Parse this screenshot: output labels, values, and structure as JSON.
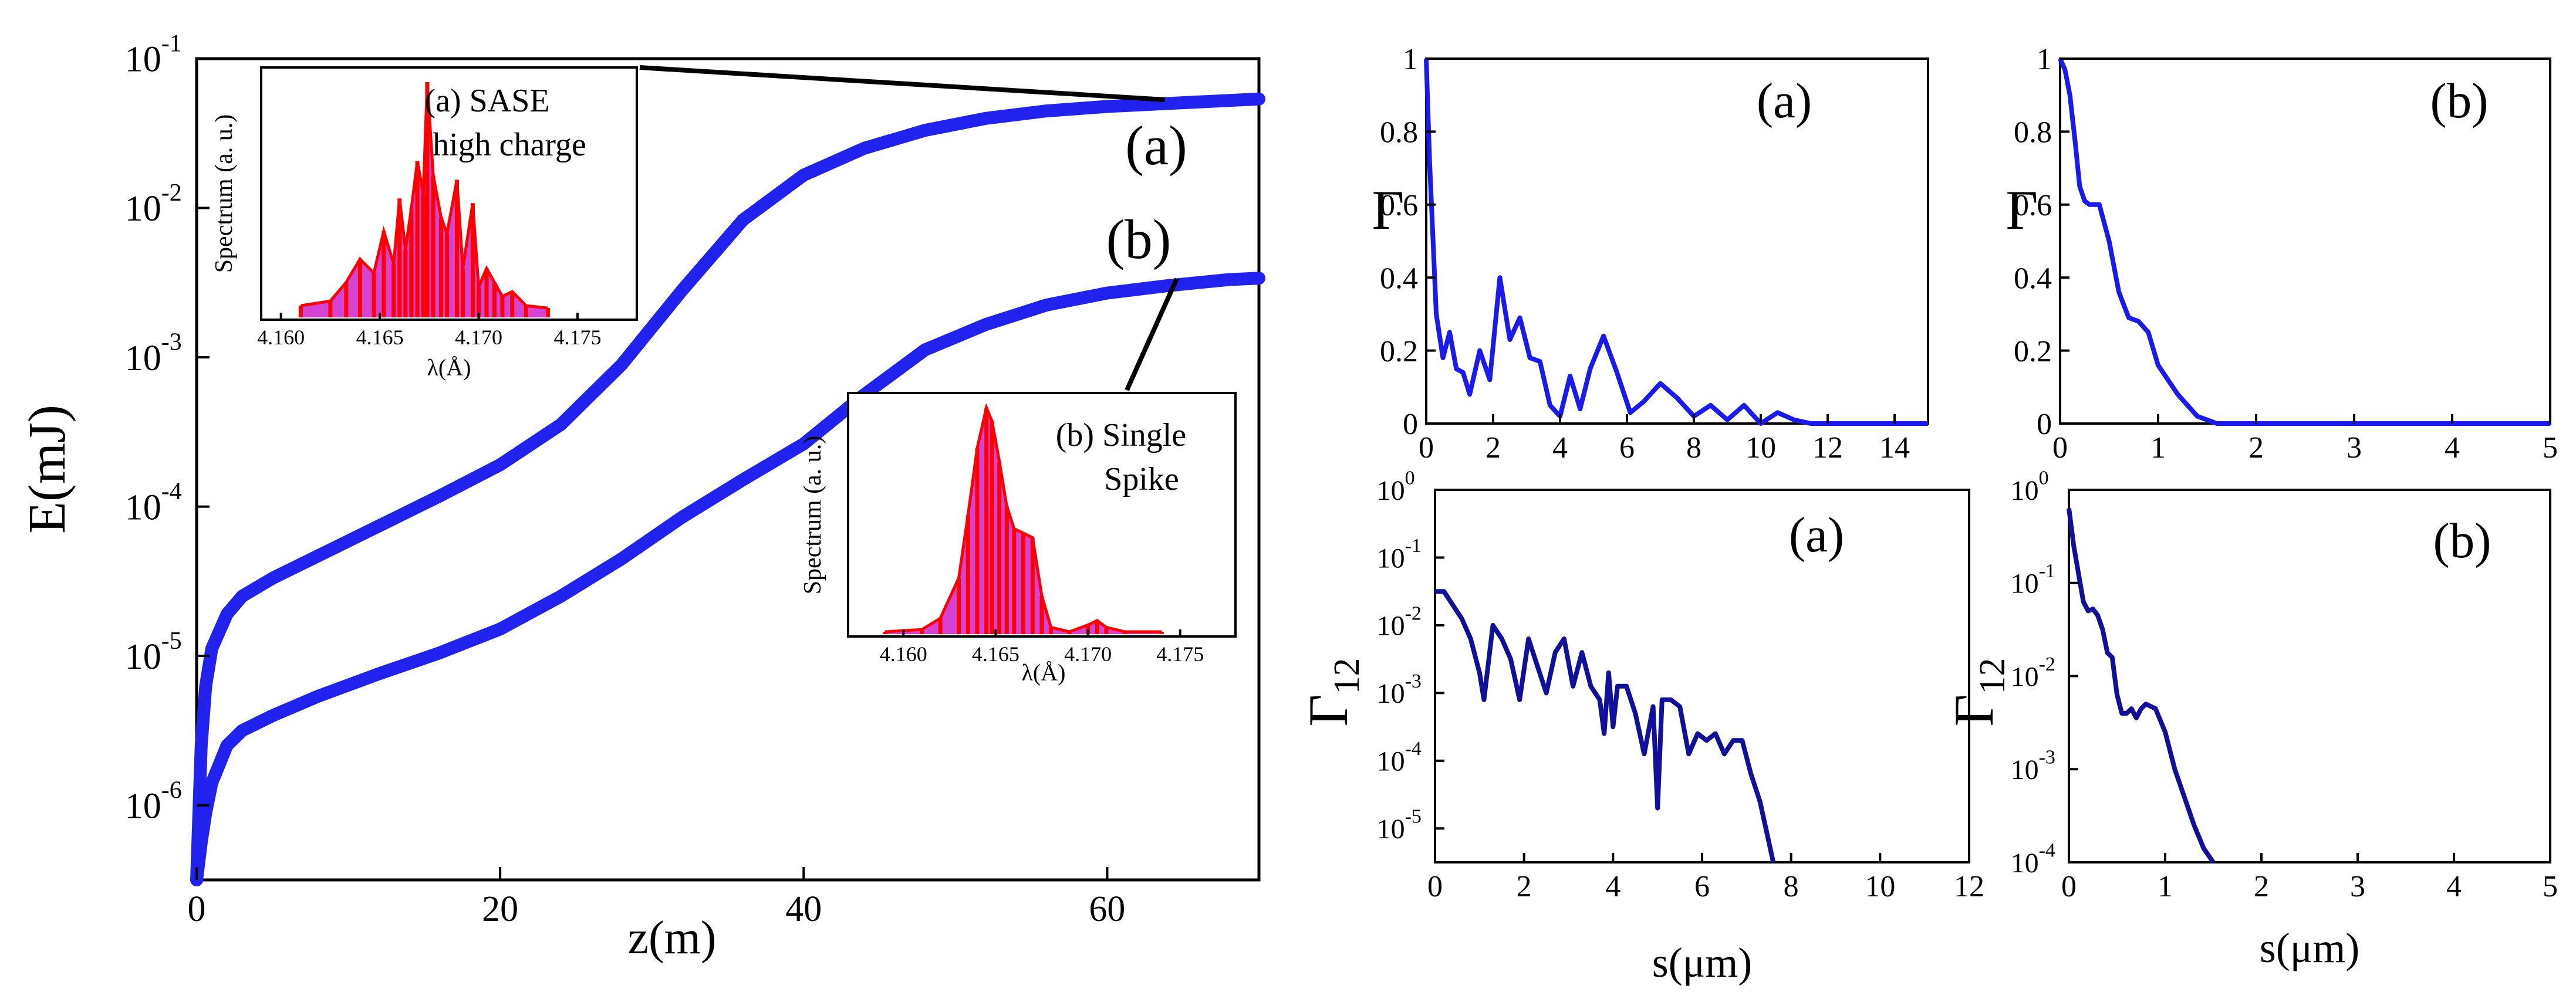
{
  "chart_data": [
    {
      "id": "energy",
      "type": "line",
      "ylog": true,
      "xlabel": "z(m)",
      "ylabel": "E(mJ)",
      "xlim": [
        0,
        70
      ],
      "ylim_exp": [
        -6.5,
        -1
      ],
      "xticks": [
        0,
        20,
        40,
        60
      ],
      "xtick_labels": [
        "0",
        "20",
        "40",
        "60"
      ],
      "yticks_exp": [
        -6,
        -5,
        -4,
        -3,
        -2,
        -1
      ],
      "ytick_labels": [
        "10",
        "10",
        "10",
        "10",
        "10",
        "10"
      ],
      "ytick_exps": [
        "-6",
        "-5",
        "-4",
        "-3",
        "-2",
        "-1"
      ],
      "series": [
        {
          "name": "(a)",
          "color": "#2222ee",
          "x": [
            0,
            0.3,
            0.6,
            1,
            2,
            3,
            5,
            8,
            12,
            16,
            20,
            24,
            28,
            32,
            36,
            40,
            44,
            48,
            52,
            56,
            60,
            64,
            68,
            70
          ],
          "logy": [
            -6.5,
            -5.6,
            -5.2,
            -4.95,
            -4.72,
            -4.6,
            -4.48,
            -4.33,
            -4.13,
            -3.93,
            -3.72,
            -3.45,
            -3.05,
            -2.55,
            -2.08,
            -1.78,
            -1.6,
            -1.48,
            -1.4,
            -1.35,
            -1.32,
            -1.3,
            -1.28,
            -1.27
          ]
        },
        {
          "name": "(b)",
          "color": "#2222ee",
          "x": [
            0,
            0.3,
            0.6,
            1,
            2,
            3,
            5,
            8,
            12,
            16,
            20,
            24,
            28,
            32,
            36,
            40,
            44,
            48,
            52,
            56,
            60,
            64,
            68,
            70
          ],
          "logy": [
            -6.5,
            -6.25,
            -6.05,
            -5.85,
            -5.6,
            -5.5,
            -5.4,
            -5.27,
            -5.12,
            -4.98,
            -4.82,
            -4.6,
            -4.35,
            -4.07,
            -3.82,
            -3.58,
            -3.25,
            -2.95,
            -2.78,
            -2.65,
            -2.57,
            -2.52,
            -2.48,
            -2.47
          ]
        }
      ],
      "labels": {
        "a": "(a)",
        "b": "(b)"
      },
      "insets": [
        {
          "id": "sase",
          "type": "bar",
          "color": "#ff0000",
          "fill": "#cc22cc",
          "title_line1": "(a) SASE",
          "title_line2": "high charge",
          "ylabel": "Spectrum (a. u.)",
          "xlabel": "λ(Å)",
          "xlim": [
            4.159,
            4.178
          ],
          "xticks": [
            4.16,
            4.165,
            4.17,
            4.175
          ],
          "xtick_labels": [
            "4.160",
            "4.165",
            "4.170",
            "4.175"
          ],
          "lambda": [
            4.161,
            4.1625,
            4.1633,
            4.164,
            4.1647,
            4.1652,
            4.1657,
            4.166,
            4.1663,
            4.1666,
            4.1669,
            4.1672,
            4.1674,
            4.1677,
            4.1681,
            4.1684,
            4.1689,
            4.1692,
            4.1697,
            4.17,
            4.1704,
            4.1708,
            4.1712,
            4.1717,
            4.1724,
            4.1735
          ],
          "values": [
            0.04,
            0.06,
            0.14,
            0.24,
            0.18,
            0.36,
            0.22,
            0.5,
            0.28,
            0.46,
            0.66,
            0.52,
            1.0,
            0.6,
            0.42,
            0.35,
            0.58,
            0.2,
            0.48,
            0.12,
            0.2,
            0.14,
            0.08,
            0.1,
            0.04,
            0.03
          ]
        },
        {
          "id": "single",
          "type": "bar",
          "color": "#ff0000",
          "fill": "#cc22cc",
          "title_line1": "(b) Single",
          "title_line2": "Spike",
          "ylabel": "Spectrum (a. u.)",
          "xlabel": "λ(Å)",
          "xlim": [
            4.157,
            4.178
          ],
          "xticks": [
            4.16,
            4.165,
            4.17,
            4.175
          ],
          "xtick_labels": [
            "4.160",
            "4.165",
            "4.170",
            "4.175"
          ],
          "lambda": [
            4.159,
            4.161,
            4.162,
            4.163,
            4.1635,
            4.164,
            4.1645,
            4.1648,
            4.1652,
            4.1656,
            4.166,
            4.1665,
            4.167,
            4.1675,
            4.168,
            4.169,
            4.17,
            4.1705,
            4.171,
            4.172,
            4.174
          ],
          "values": [
            0.0,
            0.01,
            0.06,
            0.24,
            0.52,
            0.82,
            1.0,
            0.94,
            0.76,
            0.56,
            0.46,
            0.44,
            0.42,
            0.16,
            0.02,
            0.0,
            0.03,
            0.05,
            0.02,
            0.0,
            0.0
          ]
        }
      ]
    },
    {
      "id": "gamma-a",
      "type": "line",
      "label": "(a)",
      "ylabel": "Γ",
      "xlim": [
        0,
        15
      ],
      "ylim": [
        0,
        1
      ],
      "xticks": [
        0,
        2,
        4,
        6,
        8,
        10,
        12,
        14
      ],
      "xtick_labels": [
        "0",
        "2",
        "4",
        "6",
        "8",
        "10",
        "12",
        "14"
      ],
      "yticks": [
        0,
        0.2,
        0.4,
        0.6,
        0.8,
        1
      ],
      "ytick_labels": [
        "0",
        "0.2",
        "0.4",
        "0.6",
        "0.8",
        "1"
      ],
      "x": [
        0,
        0.1,
        0.3,
        0.5,
        0.7,
        0.9,
        1.1,
        1.3,
        1.6,
        1.9,
        2.2,
        2.5,
        2.8,
        3.1,
        3.4,
        3.7,
        4.0,
        4.3,
        4.6,
        4.9,
        5.3,
        5.7,
        6.1,
        6.5,
        7.0,
        7.5,
        8.0,
        8.5,
        9.0,
        9.5,
        10.0,
        10.5,
        11.0,
        11.5,
        12,
        13,
        14,
        15
      ],
      "y": [
        1.0,
        0.72,
        0.3,
        0.18,
        0.25,
        0.15,
        0.14,
        0.08,
        0.2,
        0.12,
        0.4,
        0.23,
        0.29,
        0.18,
        0.17,
        0.05,
        0.02,
        0.13,
        0.04,
        0.15,
        0.24,
        0.14,
        0.03,
        0.06,
        0.11,
        0.07,
        0.02,
        0.05,
        0.01,
        0.05,
        0.0,
        0.03,
        0.01,
        0.0,
        0.0,
        0.0,
        0.0,
        0.0
      ],
      "color": "#1a1aee"
    },
    {
      "id": "gamma-b",
      "type": "line",
      "label": "(b)",
      "ylabel": "Γ",
      "xlim": [
        0,
        5
      ],
      "ylim": [
        0,
        1
      ],
      "xticks": [
        0,
        1,
        2,
        3,
        4,
        5
      ],
      "xtick_labels": [
        "0",
        "1",
        "2",
        "3",
        "4",
        "5"
      ],
      "yticks": [
        0,
        0.2,
        0.4,
        0.6,
        0.8,
        1
      ],
      "ytick_labels": [
        "0",
        "0.2",
        "0.4",
        "0.6",
        "0.8",
        "1"
      ],
      "x": [
        0,
        0.05,
        0.1,
        0.15,
        0.2,
        0.25,
        0.3,
        0.4,
        0.5,
        0.6,
        0.7,
        0.8,
        0.9,
        1.0,
        1.1,
        1.2,
        1.3,
        1.4,
        1.5,
        1.6,
        1.8,
        2.0,
        2.5,
        3,
        4,
        5
      ],
      "y": [
        1.0,
        0.97,
        0.9,
        0.78,
        0.65,
        0.61,
        0.6,
        0.6,
        0.5,
        0.36,
        0.29,
        0.28,
        0.25,
        0.16,
        0.12,
        0.08,
        0.05,
        0.02,
        0.01,
        0.0,
        0.0,
        0.0,
        0.0,
        0.0,
        0.0,
        0.0
      ],
      "color": "#1a1aee"
    },
    {
      "id": "gamma12-a",
      "type": "line",
      "ylog": true,
      "label": "(a)",
      "ylabel": "Γ",
      "ylabel_sub": "12",
      "xlabel": "s(μm)",
      "xlim": [
        0,
        12
      ],
      "ylim_exp": [
        -5.5,
        0
      ],
      "xticks": [
        0,
        2,
        4,
        6,
        8,
        10,
        12
      ],
      "xtick_labels": [
        "0",
        "2",
        "4",
        "6",
        "8",
        "10",
        "12"
      ],
      "yticks_exp": [
        -5,
        -4,
        -3,
        -2,
        -1,
        0
      ],
      "ytick_labels": [
        "10",
        "10",
        "10",
        "10",
        "10",
        "10"
      ],
      "ytick_exps": [
        "-5",
        "-4",
        "-3",
        "-2",
        "-1",
        "0"
      ],
      "x": [
        0,
        0.2,
        0.4,
        0.6,
        0.8,
        1.0,
        1.1,
        1.3,
        1.5,
        1.7,
        1.9,
        2.1,
        2.3,
        2.5,
        2.7,
        2.9,
        3.1,
        3.3,
        3.5,
        3.7,
        3.8,
        3.9,
        4.0,
        4.1,
        4.3,
        4.5,
        4.7,
        4.9,
        5.0,
        5.1,
        5.3,
        5.5,
        5.7,
        5.9,
        6.1,
        6.3,
        6.5,
        6.7,
        6.9,
        7.1,
        7.3,
        7.5,
        7.6
      ],
      "logy": [
        -1.5,
        -1.5,
        -1.7,
        -1.9,
        -2.2,
        -2.7,
        -3.1,
        -2.0,
        -2.2,
        -2.5,
        -3.1,
        -2.2,
        -2.6,
        -3.0,
        -2.4,
        -2.2,
        -2.9,
        -2.4,
        -2.9,
        -3.1,
        -3.6,
        -2.7,
        -3.5,
        -2.9,
        -2.9,
        -3.3,
        -3.9,
        -3.2,
        -4.7,
        -3.1,
        -3.1,
        -3.2,
        -3.9,
        -3.6,
        -3.7,
        -3.6,
        -3.9,
        -3.7,
        -3.7,
        -4.2,
        -4.6,
        -5.2,
        -5.5
      ],
      "color": "#10109a"
    },
    {
      "id": "gamma12-b",
      "type": "line",
      "ylog": true,
      "label": "(b)",
      "ylabel": "Γ",
      "ylabel_sub": "12",
      "xlabel": "s(μm)",
      "xlim": [
        0,
        5
      ],
      "ylim_exp": [
        -4,
        0
      ],
      "xticks": [
        0,
        1,
        2,
        3,
        4,
        5
      ],
      "xtick_labels": [
        "0",
        "1",
        "2",
        "3",
        "4",
        "5"
      ],
      "yticks_exp": [
        -4,
        -3,
        -2,
        -1,
        0
      ],
      "ytick_labels": [
        "10",
        "10",
        "10",
        "10",
        "10"
      ],
      "ytick_exps": [
        "-4",
        "-3",
        "-2",
        "-1",
        "0"
      ],
      "x": [
        0,
        0.05,
        0.1,
        0.15,
        0.2,
        0.25,
        0.3,
        0.35,
        0.4,
        0.45,
        0.5,
        0.55,
        0.6,
        0.65,
        0.7,
        0.75,
        0.8,
        0.9,
        1.0,
        1.1,
        1.2,
        1.3,
        1.4,
        1.5
      ],
      "logy": [
        -0.2,
        -0.6,
        -0.9,
        -1.2,
        -1.3,
        -1.28,
        -1.35,
        -1.5,
        -1.75,
        -1.8,
        -2.2,
        -2.4,
        -2.4,
        -2.35,
        -2.45,
        -2.35,
        -2.3,
        -2.35,
        -2.6,
        -3.0,
        -3.3,
        -3.6,
        -3.85,
        -4.0
      ],
      "color": "#10109a"
    }
  ]
}
